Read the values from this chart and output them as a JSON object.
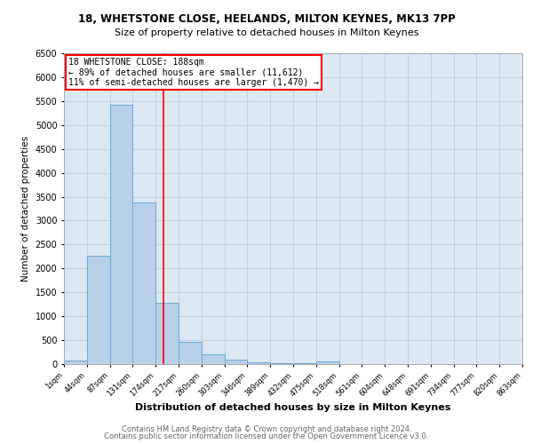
{
  "title1": "18, WHETSTONE CLOSE, HEELANDS, MILTON KEYNES, MK13 7PP",
  "title2": "Size of property relative to detached houses in Milton Keynes",
  "xlabel": "Distribution of detached houses by size in Milton Keynes",
  "ylabel": "Number of detached properties",
  "footer_line1": "Contains HM Land Registry data © Crown copyright and database right 2024.",
  "footer_line2": "Contains public sector information licensed under the Open Government Licence v3.0.",
  "bin_labels": [
    "1sqm",
    "44sqm",
    "87sqm",
    "131sqm",
    "174sqm",
    "217sqm",
    "260sqm",
    "303sqm",
    "346sqm",
    "389sqm",
    "432sqm",
    "475sqm",
    "518sqm",
    "561sqm",
    "604sqm",
    "648sqm",
    "691sqm",
    "734sqm",
    "777sqm",
    "820sqm",
    "863sqm"
  ],
  "bar_values": [
    80,
    2270,
    5430,
    3380,
    1290,
    460,
    210,
    85,
    40,
    20,
    10,
    60,
    0,
    0,
    0,
    0,
    0,
    0,
    0,
    0
  ],
  "bar_color": "#b8d0e8",
  "bar_edge_color": "#6aaad4",
  "grid_color": "#c0d0e0",
  "background_color": "#dce8f4",
  "annotation_title": "18 WHETSTONE CLOSE: 188sqm",
  "annotation_line1": "← 89% of detached houses are smaller (11,612)",
  "annotation_line2": "11% of semi-detached houses are larger (1,470) →",
  "ylim": [
    0,
    6500
  ],
  "yticks": [
    0,
    500,
    1000,
    1500,
    2000,
    2500,
    3000,
    3500,
    4000,
    4500,
    5000,
    5500,
    6000,
    6500
  ],
  "bin_edges_val": [
    1,
    44,
    87,
    131,
    174,
    217,
    260,
    303,
    346,
    389,
    432,
    475,
    518,
    561,
    604,
    648,
    691,
    734,
    777,
    820,
    863
  ],
  "property_size": 188
}
